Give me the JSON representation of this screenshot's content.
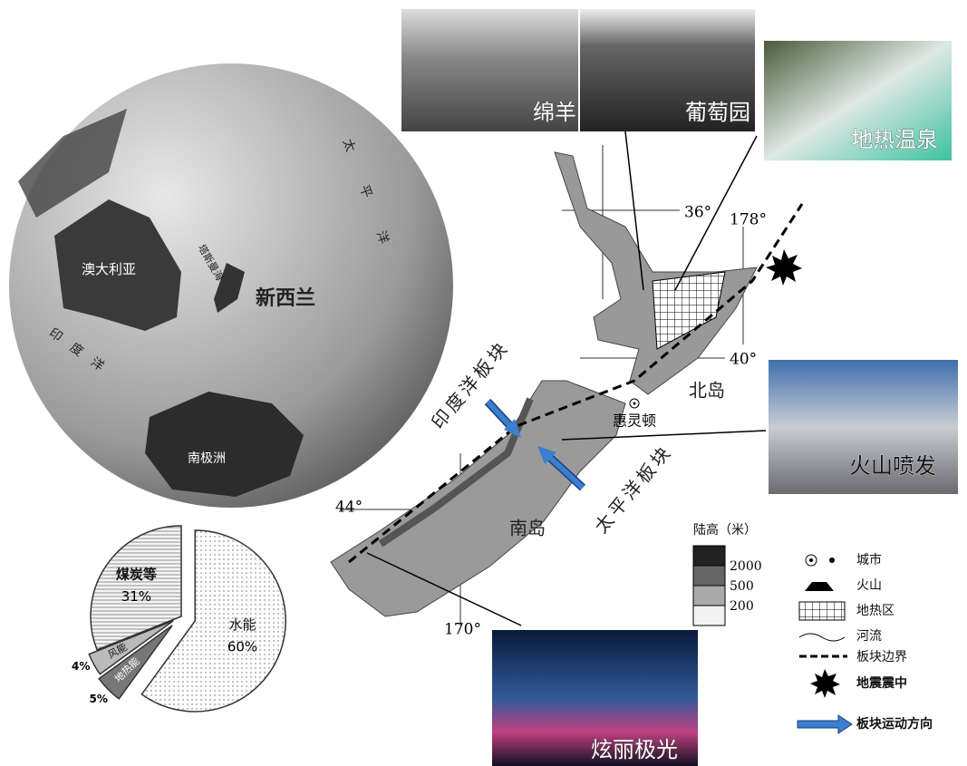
{
  "globe": {
    "australia": "澳大利亚",
    "new_zealand": "新西兰",
    "antarctica": "南极洲",
    "indian_ocean": "印度洋",
    "pacific_ocean": "太平洋",
    "tasman_sea": "塔斯曼海"
  },
  "photos": [
    {
      "label": "绵羊"
    },
    {
      "label": "葡萄园"
    },
    {
      "label": "地热温泉"
    },
    {
      "label": "火山喷发"
    },
    {
      "label": "炫丽极光"
    }
  ],
  "map": {
    "north_island": "北岛",
    "south_island": "南岛",
    "wellington": "惠灵顿",
    "indian_plate": "印度洋板块",
    "pacific_plate": "太平洋板块",
    "coords": [
      "36°",
      "178°",
      "40°",
      "44°",
      "170°"
    ]
  },
  "elevation": {
    "title": "陆高（米）",
    "levels": [
      2000,
      500,
      200
    ]
  },
  "legend": [
    "城市",
    "火山",
    "地热区",
    "河流",
    "板块边界",
    "地震震中",
    "板块运动方向"
  ],
  "chart_data": {
    "type": "pie",
    "categories": [
      "水能",
      "地热能",
      "风能",
      "煤炭等"
    ],
    "values": [
      60,
      5,
      4,
      31
    ],
    "value_labels": [
      "60%",
      "5%",
      "4%",
      "31%"
    ]
  }
}
